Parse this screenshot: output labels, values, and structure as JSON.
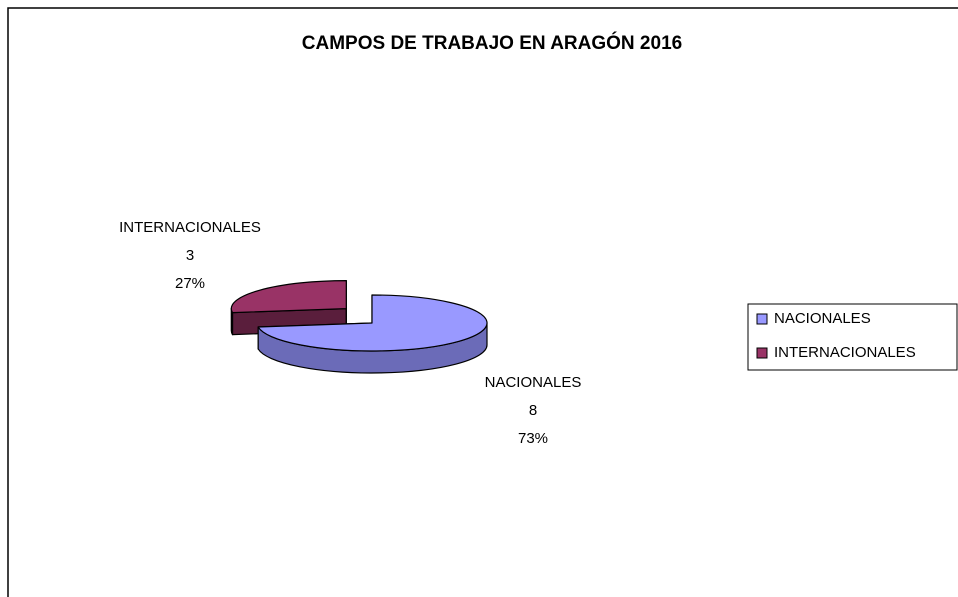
{
  "chart_data": {
    "type": "pie",
    "title": "CAMPOS DE TRABAJO EN ARAGÓN 2016",
    "categories": [
      "NACIONALES",
      "INTERNACIONALES"
    ],
    "values": [
      8,
      3
    ],
    "percent_labels": [
      "73%",
      "27%"
    ],
    "colors": [
      "#9999ff",
      "#993366"
    ],
    "side_colors": [
      "#6b6bb8",
      "#5a1e3c"
    ],
    "legend": "right"
  }
}
